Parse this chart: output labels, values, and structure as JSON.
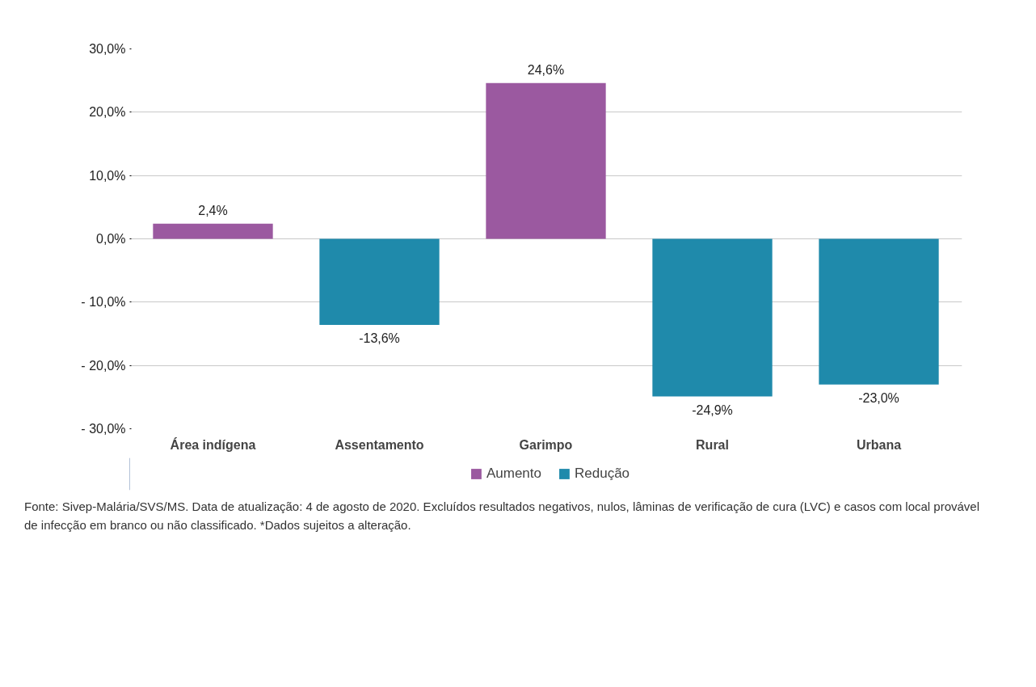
{
  "chart_data": {
    "type": "bar",
    "stacked": true,
    "categories": [
      "Área indígena",
      "Assentamento",
      "Garimpo",
      "Rural",
      "Urbana"
    ],
    "series": [
      {
        "name": "Aumento",
        "color": "#9b59a0",
        "values": [
          2.4,
          null,
          24.6,
          null,
          null
        ],
        "value_labels": [
          "2,4%",
          null,
          "24,6%",
          null,
          null
        ]
      },
      {
        "name": "Redução",
        "color": "#1f8aab",
        "values": [
          null,
          -13.6,
          null,
          -24.9,
          -23.0
        ],
        "value_labels": [
          null,
          "-13,6%",
          null,
          "-24,9%",
          "-23,0%"
        ]
      }
    ],
    "ylim": [
      -30,
      30
    ],
    "yticks": [
      {
        "value": 30,
        "label": "30,0%"
      },
      {
        "value": 20,
        "label": "20,0%"
      },
      {
        "value": 10,
        "label": "10,0%"
      },
      {
        "value": 0,
        "label": "0,0%"
      },
      {
        "value": -10,
        "label": "- 10,0%"
      },
      {
        "value": -20,
        "label": "- 20,0%"
      },
      {
        "value": -30,
        "label": "- 30,0%"
      }
    ],
    "grid": "y",
    "legend": "bottom",
    "annotations": [
      "Fonte: Sivep-Malária/SVS/MS. Data de atualização: 4 de agosto de 2020. Excluídos resultados negativos, nulos, lâminas de verificação de cura (LVC) e casos com local provável de infecção em branco ou não classificado. *Dados sujeitos a alteração."
    ]
  }
}
